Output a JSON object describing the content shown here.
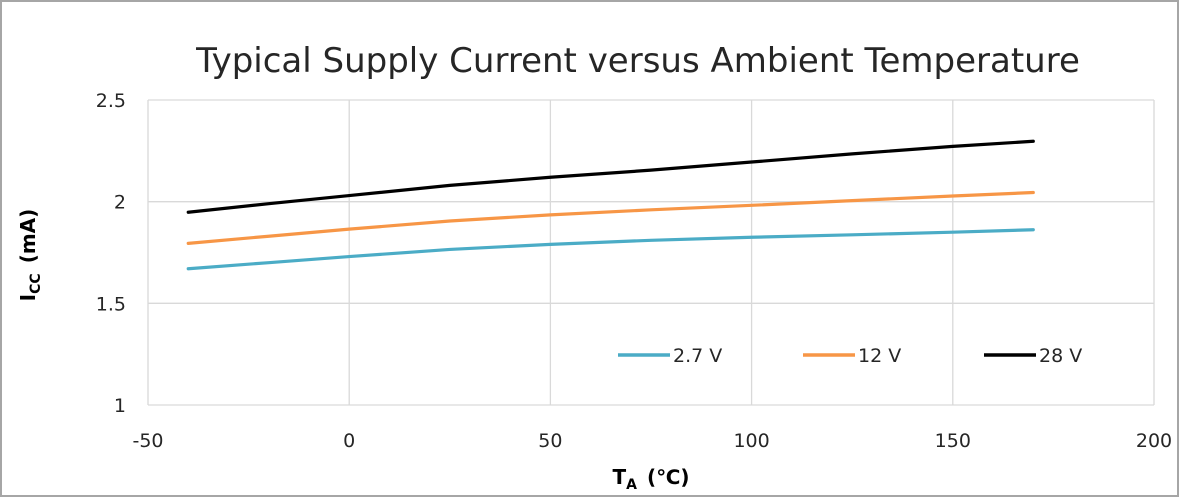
{
  "chart_data": {
    "type": "line",
    "title": "Typical Supply Current versus Ambient Temperature",
    "xlabel": {
      "main": "T",
      "sub": "A",
      "suffix": "(℃)"
    },
    "ylabel": {
      "main": "I",
      "sub": "CC",
      "suffix": "(mA)"
    },
    "xlim": [
      -50,
      200
    ],
    "ylim": [
      1,
      2.5
    ],
    "x_ticks": [
      -50,
      0,
      50,
      100,
      150,
      200
    ],
    "y_ticks": [
      1,
      1.5,
      2,
      2.5
    ],
    "x_tick_labels": [
      "-50",
      "0",
      "50",
      "100",
      "150",
      "200"
    ],
    "y_tick_labels": [
      "1",
      "1.5",
      "2",
      "2.5"
    ],
    "grid": true,
    "legend_position": "bottom-right",
    "x": [
      -40,
      -20,
      0,
      25,
      50,
      75,
      100,
      125,
      150,
      170
    ],
    "series": [
      {
        "name": "2.7 V",
        "color": "#4bacc6",
        "values": [
          1.67,
          1.7,
          1.73,
          1.765,
          1.79,
          1.81,
          1.825,
          1.837,
          1.85,
          1.862
        ]
      },
      {
        "name": "12 V",
        "color": "#f79646",
        "values": [
          1.795,
          1.83,
          1.865,
          1.905,
          1.935,
          1.96,
          1.982,
          2.005,
          2.028,
          2.045
        ]
      },
      {
        "name": "28 V",
        "color": "#000000",
        "values": [
          1.948,
          1.99,
          2.03,
          2.08,
          2.12,
          2.155,
          2.195,
          2.235,
          2.272,
          2.297
        ]
      }
    ]
  }
}
